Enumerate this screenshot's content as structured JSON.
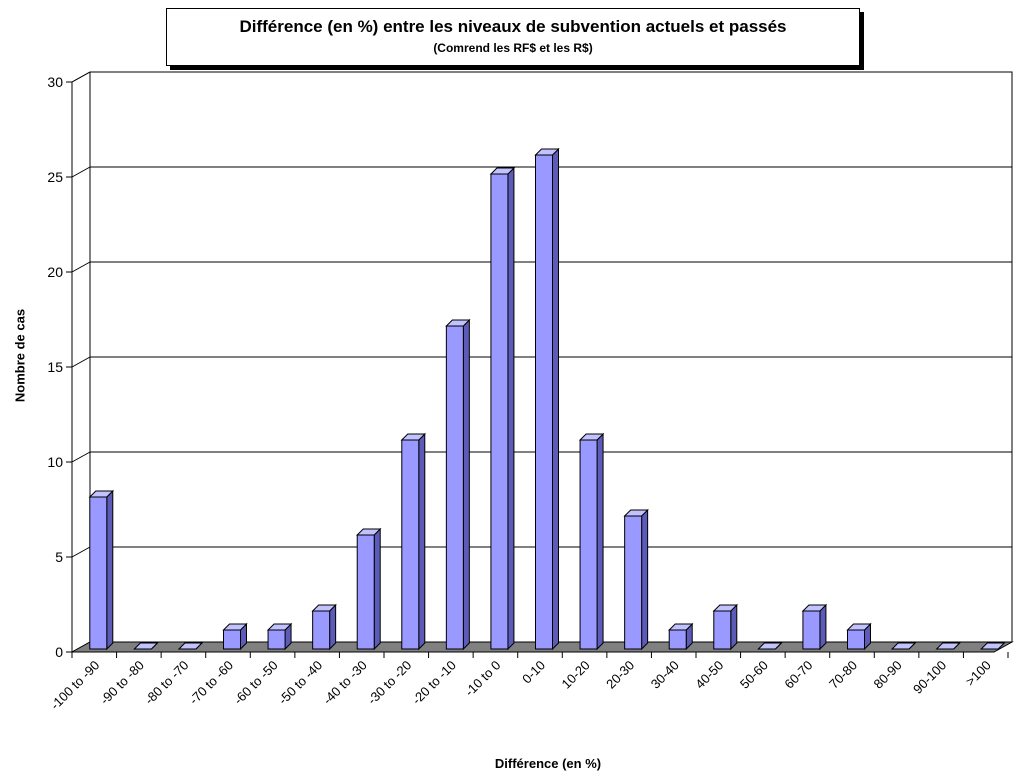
{
  "chart_data": {
    "type": "bar",
    "title": "Différence (en %) entre les niveaux de subvention actuels et passés",
    "subtitle": "(Comrend les RF$ et les R$)",
    "xlabel": "Différence (en %)",
    "ylabel": "Nombre de cas",
    "ylim": [
      0,
      30
    ],
    "yticks": [
      0,
      5,
      10,
      15,
      20,
      25,
      30
    ],
    "grid": true,
    "categories": [
      "-100 to -90",
      "-90 to -80",
      "-80 to -70",
      "-70 to -60",
      "-60 to -50",
      "-50 to -40",
      "-40 to -30",
      "-30 to -20",
      "-20 to -10",
      "-10 to 0",
      "0-10",
      "10-20",
      "20-30",
      "30-40",
      "40-50",
      "50-60",
      "60-70",
      "70-80",
      "80-90",
      "90-100",
      ">100"
    ],
    "values": [
      8,
      0,
      0,
      1,
      1,
      2,
      6,
      11,
      17,
      25,
      26,
      11,
      7,
      1,
      2,
      0,
      2,
      1,
      0,
      0,
      0
    ],
    "colors": {
      "bar_front": "#9999ff",
      "bar_side": "#5c5cb8",
      "bar_top": "#c2c2ff",
      "floor": "#808080"
    }
  }
}
